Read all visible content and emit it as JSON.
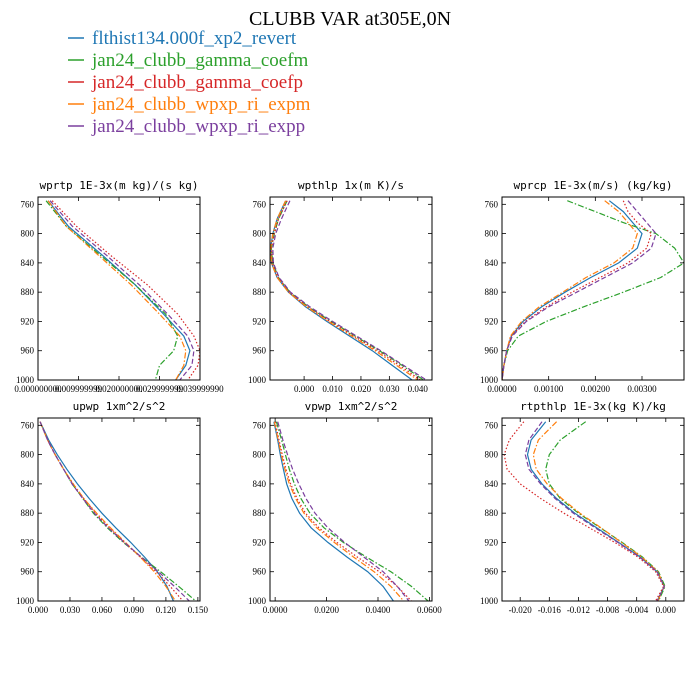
{
  "figure": {
    "title": "CLUBB VAR at305E,0N",
    "legend": [
      {
        "label": "flthist134.000f_xp2_revert",
        "color": "#1f77b4",
        "dash": "solid"
      },
      {
        "label": "jan24_clubb_gamma_coefm",
        "color": "#2ca02c",
        "dash": "dashdot"
      },
      {
        "label": "jan24_clubb_gamma_coefp",
        "color": "#d62728",
        "dash": "dotted"
      },
      {
        "label": "jan24_clubb_wpxp_ri_expm",
        "color": "#ff7f0e",
        "dash": "dashdot"
      },
      {
        "label": "jan24_clubb_wpxp_ri_expp",
        "color": "#7b3f9e",
        "dash": "dashed"
      }
    ]
  },
  "chart_data": [
    {
      "type": "line",
      "title": "wprtp  1E-3x(m kg)/(s kg)",
      "xlim": [
        0.0,
        0.04
      ],
      "ylim": [
        1000,
        750
      ],
      "xticks": [
        0.0,
        0.01,
        0.02,
        0.03,
        0.04
      ],
      "xtick_labels": [
        "0.000000000",
        "0.009999999",
        "0.020000000",
        "0.029999999",
        "0.039999990"
      ],
      "yticks": [
        760,
        800,
        840,
        880,
        920,
        960,
        1000
      ],
      "y": [
        755,
        790,
        830,
        870,
        910,
        940,
        960,
        980,
        1000
      ],
      "series": [
        {
          "name": "flthist134.000f_xp2_revert",
          "values": [
            0.0025,
            0.0075,
            0.016,
            0.024,
            0.031,
            0.036,
            0.0375,
            0.0365,
            0.034
          ]
        },
        {
          "name": "jan24_clubb_gamma_coefm",
          "values": [
            0.002,
            0.007,
            0.0155,
            0.024,
            0.0315,
            0.0345,
            0.0335,
            0.03,
            0.029
          ]
        },
        {
          "name": "jan24_clubb_gamma_coefp",
          "values": [
            0.0035,
            0.0095,
            0.018,
            0.027,
            0.0345,
            0.0385,
            0.04,
            0.0395,
            0.037
          ]
        },
        {
          "name": "jan24_clubb_wpxp_ri_expm",
          "values": [
            0.0025,
            0.007,
            0.015,
            0.023,
            0.03,
            0.035,
            0.0365,
            0.036,
            0.034
          ]
        },
        {
          "name": "jan24_clubb_wpxp_ri_expp",
          "values": [
            0.003,
            0.0085,
            0.017,
            0.025,
            0.032,
            0.037,
            0.0385,
            0.038,
            0.035
          ]
        }
      ]
    },
    {
      "type": "line",
      "title": "wpthlp  1x(m K)/s",
      "xlim": [
        -0.012,
        0.045
      ],
      "ylim": [
        1000,
        750
      ],
      "xticks": [
        0.0,
        0.01,
        0.02,
        0.03,
        0.04
      ],
      "xtick_labels": [
        "0.000",
        "0.010",
        "0.020",
        "0.030",
        "0.040"
      ],
      "yticks": [
        760,
        800,
        840,
        880,
        920,
        960,
        1000
      ],
      "y": [
        755,
        780,
        800,
        820,
        840,
        860,
        880,
        900,
        920,
        940,
        960,
        980,
        1000
      ],
      "series": [
        {
          "name": "flthist134.000f_xp2_revert",
          "values": [
            -0.0065,
            -0.0095,
            -0.011,
            -0.0118,
            -0.0115,
            -0.0095,
            -0.0055,
            0.0005,
            0.008,
            0.016,
            0.024,
            0.031,
            0.038
          ]
        },
        {
          "name": "jan24_clubb_gamma_coefm",
          "values": [
            -0.006,
            -0.009,
            -0.0105,
            -0.0115,
            -0.011,
            -0.009,
            -0.005,
            0.0015,
            0.0095,
            0.018,
            0.0265,
            0.0345,
            0.042
          ]
        },
        {
          "name": "jan24_clubb_gamma_coefp",
          "values": [
            -0.006,
            -0.009,
            -0.0105,
            -0.0115,
            -0.0112,
            -0.0092,
            -0.0052,
            0.0012,
            0.009,
            0.0175,
            0.0258,
            0.0335,
            0.041
          ]
        },
        {
          "name": "jan24_clubb_wpxp_ri_expm",
          "values": [
            -0.0065,
            -0.0095,
            -0.011,
            -0.0118,
            -0.0115,
            -0.0095,
            -0.0055,
            0.0008,
            0.0085,
            0.0168,
            0.025,
            0.0325,
            0.04
          ]
        },
        {
          "name": "jan24_clubb_wpxp_ri_expp",
          "values": [
            -0.005,
            -0.008,
            -0.01,
            -0.011,
            -0.0108,
            -0.0088,
            -0.0048,
            0.002,
            0.01,
            0.0185,
            0.027,
            0.035,
            0.043
          ]
        }
      ]
    },
    {
      "type": "line",
      "title": "wprcp  1E-3x(m/s) (kg/kg)",
      "xlim": [
        0.0,
        0.0039
      ],
      "ylim": [
        1000,
        750
      ],
      "xticks": [
        0.0,
        0.001,
        0.002,
        0.003
      ],
      "xtick_labels": [
        "0.00000",
        "0.00100",
        "0.00200",
        "0.00300"
      ],
      "yticks": [
        760,
        800,
        840,
        880,
        920,
        960,
        1000
      ],
      "y": [
        755,
        770,
        785,
        800,
        820,
        840,
        860,
        880,
        900,
        920,
        940,
        960,
        980,
        1000
      ],
      "series": [
        {
          "name": "flthist134.000f_xp2_revert",
          "values": [
            0.0023,
            0.0026,
            0.0028,
            0.003,
            0.0029,
            0.0025,
            0.0019,
            0.00135,
            0.00085,
            0.00045,
            0.0002,
            0.0001,
            4e-05,
            0.0
          ]
        },
        {
          "name": "jan24_clubb_gamma_coefm",
          "values": [
            0.0014,
            0.002,
            0.0026,
            0.0033,
            0.0037,
            0.0039,
            0.0034,
            0.0026,
            0.00175,
            0.00095,
            0.00035,
            0.00012,
            4e-05,
            0.0
          ]
        },
        {
          "name": "jan24_clubb_gamma_coefp",
          "values": [
            0.0026,
            0.0027,
            0.0029,
            0.0032,
            0.0031,
            0.0027,
            0.0021,
            0.0015,
            0.00095,
            0.0005,
            0.0002,
            0.0001,
            4e-05,
            0.0
          ]
        },
        {
          "name": "jan24_clubb_wpxp_ri_expm",
          "values": [
            0.0022,
            0.0025,
            0.0027,
            0.0029,
            0.0028,
            0.0024,
            0.0018,
            0.0013,
            0.0008,
            0.00042,
            0.00018,
            0.0001,
            4e-05,
            0.0
          ]
        },
        {
          "name": "jan24_clubb_wpxp_ri_expp",
          "values": [
            0.0027,
            0.0029,
            0.0031,
            0.0033,
            0.0032,
            0.0028,
            0.0022,
            0.0016,
            0.001,
            0.00052,
            0.00022,
            0.0001,
            4e-05,
            0.0
          ]
        }
      ]
    },
    {
      "type": "line",
      "title": "upwp  1xm^2/s^2",
      "xlim": [
        0.0,
        0.152
      ],
      "ylim": [
        1000,
        750
      ],
      "xticks": [
        0.0,
        0.03,
        0.06,
        0.09,
        0.12,
        0.15
      ],
      "xtick_labels": [
        "0.000",
        "0.030",
        "0.060",
        "0.090",
        "0.120",
        "0.150"
      ],
      "yticks": [
        760,
        800,
        840,
        880,
        920,
        960,
        1000
      ],
      "y": [
        755,
        780,
        800,
        820,
        840,
        860,
        880,
        900,
        920,
        940,
        960,
        980,
        1000
      ],
      "series": [
        {
          "name": "flthist134.000f_xp2_revert",
          "values": [
            0.002,
            0.01,
            0.018,
            0.027,
            0.037,
            0.048,
            0.06,
            0.073,
            0.087,
            0.1,
            0.112,
            0.121,
            0.127
          ]
        },
        {
          "name": "jan24_clubb_gamma_coefm",
          "values": [
            0.002,
            0.009,
            0.016,
            0.024,
            0.032,
            0.042,
            0.052,
            0.065,
            0.08,
            0.097,
            0.115,
            0.132,
            0.148
          ]
        },
        {
          "name": "jan24_clubb_gamma_coefp",
          "values": [
            0.002,
            0.009,
            0.016,
            0.024,
            0.033,
            0.043,
            0.054,
            0.067,
            0.081,
            0.096,
            0.111,
            0.124,
            0.136
          ]
        },
        {
          "name": "jan24_clubb_wpxp_ri_expm",
          "values": [
            0.002,
            0.009,
            0.016,
            0.024,
            0.033,
            0.043,
            0.055,
            0.068,
            0.082,
            0.096,
            0.109,
            0.12,
            0.129
          ]
        },
        {
          "name": "jan24_clubb_wpxp_ri_expp",
          "values": [
            0.002,
            0.009,
            0.016,
            0.024,
            0.032,
            0.042,
            0.053,
            0.066,
            0.081,
            0.097,
            0.113,
            0.128,
            0.142
          ]
        }
      ]
    },
    {
      "type": "line",
      "title": "vpwp  1xm^2/s^2",
      "xlim": [
        -0.002,
        0.061
      ],
      "ylim": [
        1000,
        750
      ],
      "xticks": [
        0.0,
        0.02,
        0.04,
        0.06
      ],
      "xtick_labels": [
        "0.0000",
        "0.0200",
        "0.0400",
        "0.0600"
      ],
      "yticks": [
        760,
        800,
        840,
        880,
        920,
        960,
        1000
      ],
      "y": [
        755,
        780,
        800,
        820,
        840,
        860,
        880,
        900,
        920,
        940,
        960,
        980,
        1000
      ],
      "series": [
        {
          "name": "flthist134.000f_xp2_revert",
          "values": [
            -0.0005,
            0.001,
            0.002,
            0.0032,
            0.0045,
            0.0065,
            0.0095,
            0.014,
            0.0205,
            0.028,
            0.036,
            0.042,
            0.046
          ]
        },
        {
          "name": "jan24_clubb_gamma_coefm",
          "values": [
            0.0005,
            0.0025,
            0.004,
            0.0055,
            0.0075,
            0.01,
            0.0135,
            0.019,
            0.0265,
            0.0355,
            0.045,
            0.053,
            0.0595
          ]
        },
        {
          "name": "jan24_clubb_gamma_coefp",
          "values": [
            0.0,
            0.0015,
            0.0028,
            0.0042,
            0.006,
            0.0085,
            0.0118,
            0.017,
            0.024,
            0.032,
            0.0405,
            0.0475,
            0.053
          ]
        },
        {
          "name": "jan24_clubb_wpxp_ri_expm",
          "values": [
            -0.0003,
            0.0012,
            0.0024,
            0.0038,
            0.0055,
            0.008,
            0.0112,
            0.0162,
            0.023,
            0.0305,
            0.0385,
            0.045,
            0.05
          ]
        },
        {
          "name": "jan24_clubb_wpxp_ri_expp",
          "values": [
            0.001,
            0.003,
            0.0048,
            0.0068,
            0.0092,
            0.012,
            0.0155,
            0.0205,
            0.027,
            0.0345,
            0.042,
            0.0475,
            0.052
          ]
        }
      ]
    },
    {
      "type": "line",
      "title": "rtpthlp  1E-3x(kg K)/kg",
      "xlim": [
        -0.0225,
        0.0025
      ],
      "ylim": [
        1000,
        750
      ],
      "xticks": [
        -0.02,
        -0.016,
        -0.012,
        -0.008,
        -0.004,
        0.0
      ],
      "xtick_labels": [
        "-0.020",
        "-0.016",
        "-0.012",
        "-0.008",
        "-0.004",
        "0.000"
      ],
      "yticks": [
        760,
        800,
        840,
        880,
        920,
        960,
        1000
      ],
      "y": [
        755,
        780,
        800,
        820,
        840,
        860,
        880,
        900,
        920,
        940,
        960,
        980,
        1000
      ],
      "series": [
        {
          "name": "flthist134.000f_xp2_revert",
          "values": [
            -0.0165,
            -0.0185,
            -0.019,
            -0.0185,
            -0.017,
            -0.015,
            -0.0125,
            -0.0095,
            -0.0065,
            -0.0035,
            -0.0012,
            -0.0002,
            -0.0012
          ]
        },
        {
          "name": "jan24_clubb_gamma_coefm",
          "values": [
            -0.011,
            -0.0145,
            -0.016,
            -0.0165,
            -0.016,
            -0.0145,
            -0.012,
            -0.009,
            -0.006,
            -0.0032,
            -0.001,
            -0.0001,
            -0.001
          ]
        },
        {
          "name": "jan24_clubb_gamma_coefp",
          "values": [
            -0.0195,
            -0.0215,
            -0.0222,
            -0.0218,
            -0.02,
            -0.0172,
            -0.014,
            -0.0105,
            -0.007,
            -0.0038,
            -0.0014,
            -0.0003,
            -0.0014
          ]
        },
        {
          "name": "jan24_clubb_wpxp_ri_expm",
          "values": [
            -0.015,
            -0.0175,
            -0.0182,
            -0.0178,
            -0.0163,
            -0.0143,
            -0.0118,
            -0.0089,
            -0.0061,
            -0.0033,
            -0.0011,
            -0.0002,
            -0.0011
          ]
        },
        {
          "name": "jan24_clubb_wpxp_ri_expp",
          "values": [
            -0.017,
            -0.0188,
            -0.0193,
            -0.0188,
            -0.0172,
            -0.0152,
            -0.0127,
            -0.0097,
            -0.0066,
            -0.0036,
            -0.0012,
            -0.0002,
            -0.0012
          ]
        }
      ]
    }
  ]
}
